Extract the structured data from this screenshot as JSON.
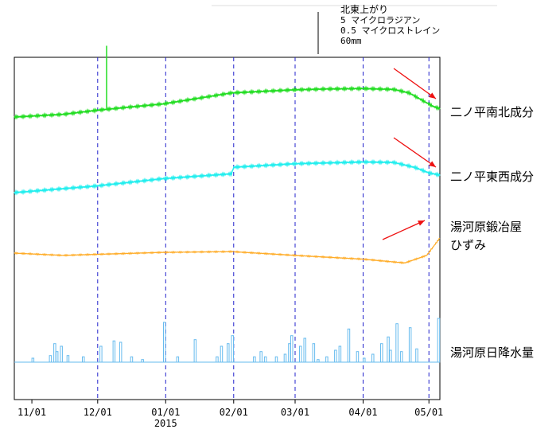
{
  "scale": {
    "direction": "北東上がり",
    "tilt_label": "5 マイクロラジアン",
    "strain_label": "0.5 マイクロストレイン",
    "rain_label": "60mm"
  },
  "series_labels": {
    "ns": "二ノ平南北成分",
    "ew": "二ノ平東西成分",
    "strain_line1": "湯河原鍛冶屋",
    "strain_line2": "ひずみ",
    "rain": "湯河原日降水量"
  },
  "chart_data": {
    "type": "line",
    "title": "",
    "x_range": [
      "2014-10-24",
      "2015-05-06"
    ],
    "x_ticks": [
      {
        "label": "11/01",
        "date": "2014-11-01"
      },
      {
        "label": "12/01",
        "date": "2014-12-01"
      },
      {
        "label": "01/01",
        "date": "2015-01-01"
      },
      {
        "label": "02/01",
        "date": "2015-02-01"
      },
      {
        "label": "03/01",
        "date": "2015-03-01"
      },
      {
        "label": "04/01",
        "date": "2015-04-01"
      },
      {
        "label": "05/01",
        "date": "2015-05-01"
      }
    ],
    "year_label": "2015",
    "series": [
      {
        "name": "二ノ平南北成分",
        "color": "#22dd22",
        "unit": "microradian (relative)",
        "x": [
          "2014-10-24",
          "2014-11-15",
          "2014-11-30",
          "2014-12-10",
          "2014-12-31",
          "2015-01-31",
          "2015-02-28",
          "2015-03-15",
          "2015-04-01",
          "2015-04-15",
          "2015-04-22",
          "2015-04-28",
          "2015-05-03",
          "2015-05-06"
        ],
        "values": [
          0.0,
          0.3,
          0.75,
          1.0,
          1.5,
          2.75,
          3.1,
          3.2,
          3.25,
          3.15,
          2.75,
          1.9,
          1.2,
          0.95
        ],
        "events": [
          {
            "date": "2014-12-05",
            "offset": -1.2
          }
        ]
      },
      {
        "name": "二ノ平東西成分",
        "color": "#22eeee",
        "unit": "microradian (relative)",
        "x": [
          "2014-10-24",
          "2014-11-30",
          "2014-12-31",
          "2015-01-31",
          "2015-02-01",
          "2015-03-01",
          "2015-04-01",
          "2015-04-15",
          "2015-04-25",
          "2015-05-01",
          "2015-05-06"
        ],
        "values": [
          0.0,
          0.75,
          1.6,
          2.15,
          2.9,
          3.3,
          3.5,
          3.45,
          2.85,
          2.25,
          2.0
        ]
      },
      {
        "name": "湯河原鍛冶屋ひずみ",
        "color": "#ffaa22",
        "unit": "microstrain (relative)",
        "x": [
          "2014-10-24",
          "2014-11-15",
          "2014-12-31",
          "2015-01-31",
          "2015-03-01",
          "2015-04-01",
          "2015-04-20",
          "2015-04-30",
          "2015-05-06"
        ],
        "values": [
          0.0,
          -0.03,
          0.01,
          0.02,
          -0.03,
          -0.08,
          -0.13,
          -0.03,
          0.2
        ]
      }
    ],
    "rain": {
      "name": "湯河原日降水量",
      "color": "#66bbee",
      "unit": "mm/day",
      "dates": [
        "2014-11-01",
        "2014-11-09",
        "2014-11-11",
        "2014-11-12",
        "2014-11-14",
        "2014-11-17",
        "2014-11-24",
        "2014-12-02",
        "2014-12-08",
        "2014-12-11",
        "2014-12-16",
        "2014-12-21",
        "2014-12-31",
        "2015-01-06",
        "2015-01-14",
        "2015-01-24",
        "2015-01-26",
        "2015-01-29",
        "2015-01-31",
        "2015-02-10",
        "2015-02-13",
        "2015-02-15",
        "2015-02-20",
        "2015-02-24",
        "2015-02-26",
        "2015-02-27",
        "2015-03-03",
        "2015-03-05",
        "2015-03-09",
        "2015-03-11",
        "2015-03-15",
        "2015-03-19",
        "2015-03-21",
        "2015-03-25",
        "2015-03-29",
        "2015-04-01",
        "2015-04-05",
        "2015-04-09",
        "2015-04-12",
        "2015-04-13",
        "2015-04-16",
        "2015-04-18",
        "2015-04-22",
        "2015-04-25",
        "2015-05-05"
      ],
      "values": [
        3,
        5,
        14,
        8,
        12,
        5,
        4,
        12,
        16,
        15,
        4,
        2,
        30,
        4,
        17,
        4,
        12,
        14,
        20,
        4,
        8,
        4,
        4,
        6,
        14,
        20,
        12,
        18,
        14,
        2,
        4,
        9,
        12,
        25,
        8,
        3,
        6,
        14,
        19,
        9,
        29,
        8,
        26,
        10,
        33
      ]
    },
    "legend": "right"
  }
}
